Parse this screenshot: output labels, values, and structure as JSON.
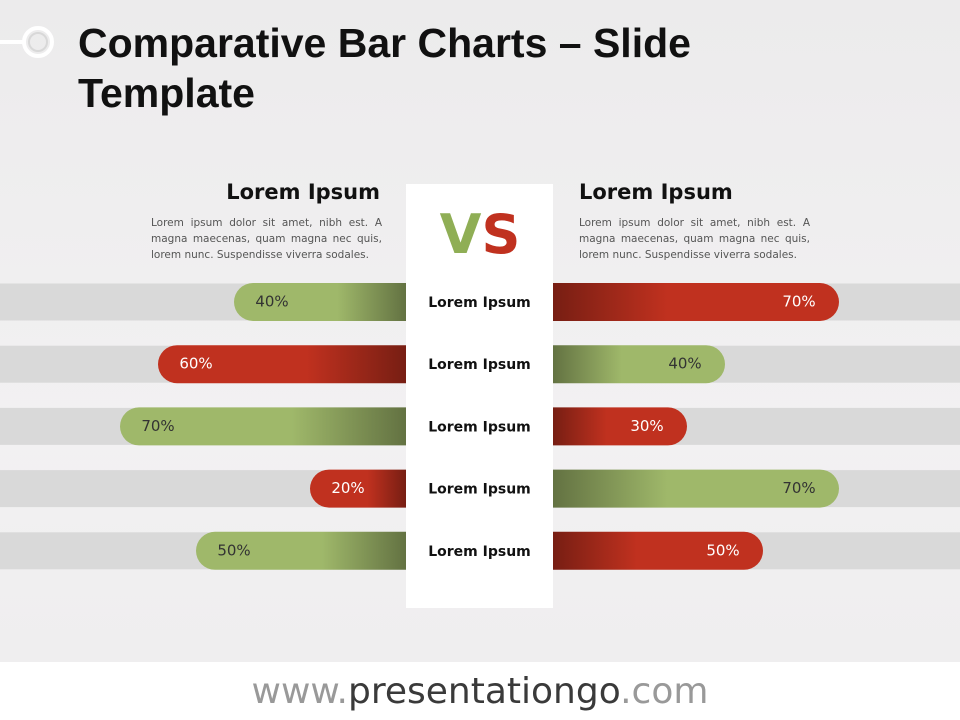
{
  "title": "Comparative Bar Charts – Slide Template",
  "vs": [
    "V",
    "S"
  ],
  "footer": [
    "www.",
    "presentationgo",
    ".com"
  ],
  "chart_data": {
    "type": "bar",
    "categories": [
      "Lorem Ipsum",
      "Lorem Ipsum",
      "Lorem Ipsum",
      "Lorem Ipsum",
      "Lorem Ipsum"
    ],
    "series": [
      {
        "name": "Lorem Ipsum",
        "description": "Lorem ipsum dolor sit amet, nibh est. A magna maecenas, quam magna nec quis, lorem nunc. Suspendisse viverra sodales.",
        "values": [
          40,
          60,
          70,
          20,
          50
        ],
        "value_labels": [
          "40%",
          "60%",
          "70%",
          "20%",
          "50%"
        ],
        "colors": [
          "#9fb86a",
          "#c0311f",
          "#9fb86a",
          "#c0311f",
          "#9fb86a"
        ]
      },
      {
        "name": "Lorem Ipsum",
        "description": "Lorem ipsum dolor sit amet, nibh est. A magna maecenas, quam magna nec quis, lorem nunc. Suspendisse viverra sodales.",
        "values": [
          70,
          40,
          30,
          70,
          50
        ],
        "value_labels": [
          "70%",
          "40%",
          "30%",
          "70%",
          "50%"
        ],
        "colors": [
          "#c0311f",
          "#9fb86a",
          "#c0311f",
          "#9fb86a",
          "#c0311f"
        ]
      }
    ]
  }
}
